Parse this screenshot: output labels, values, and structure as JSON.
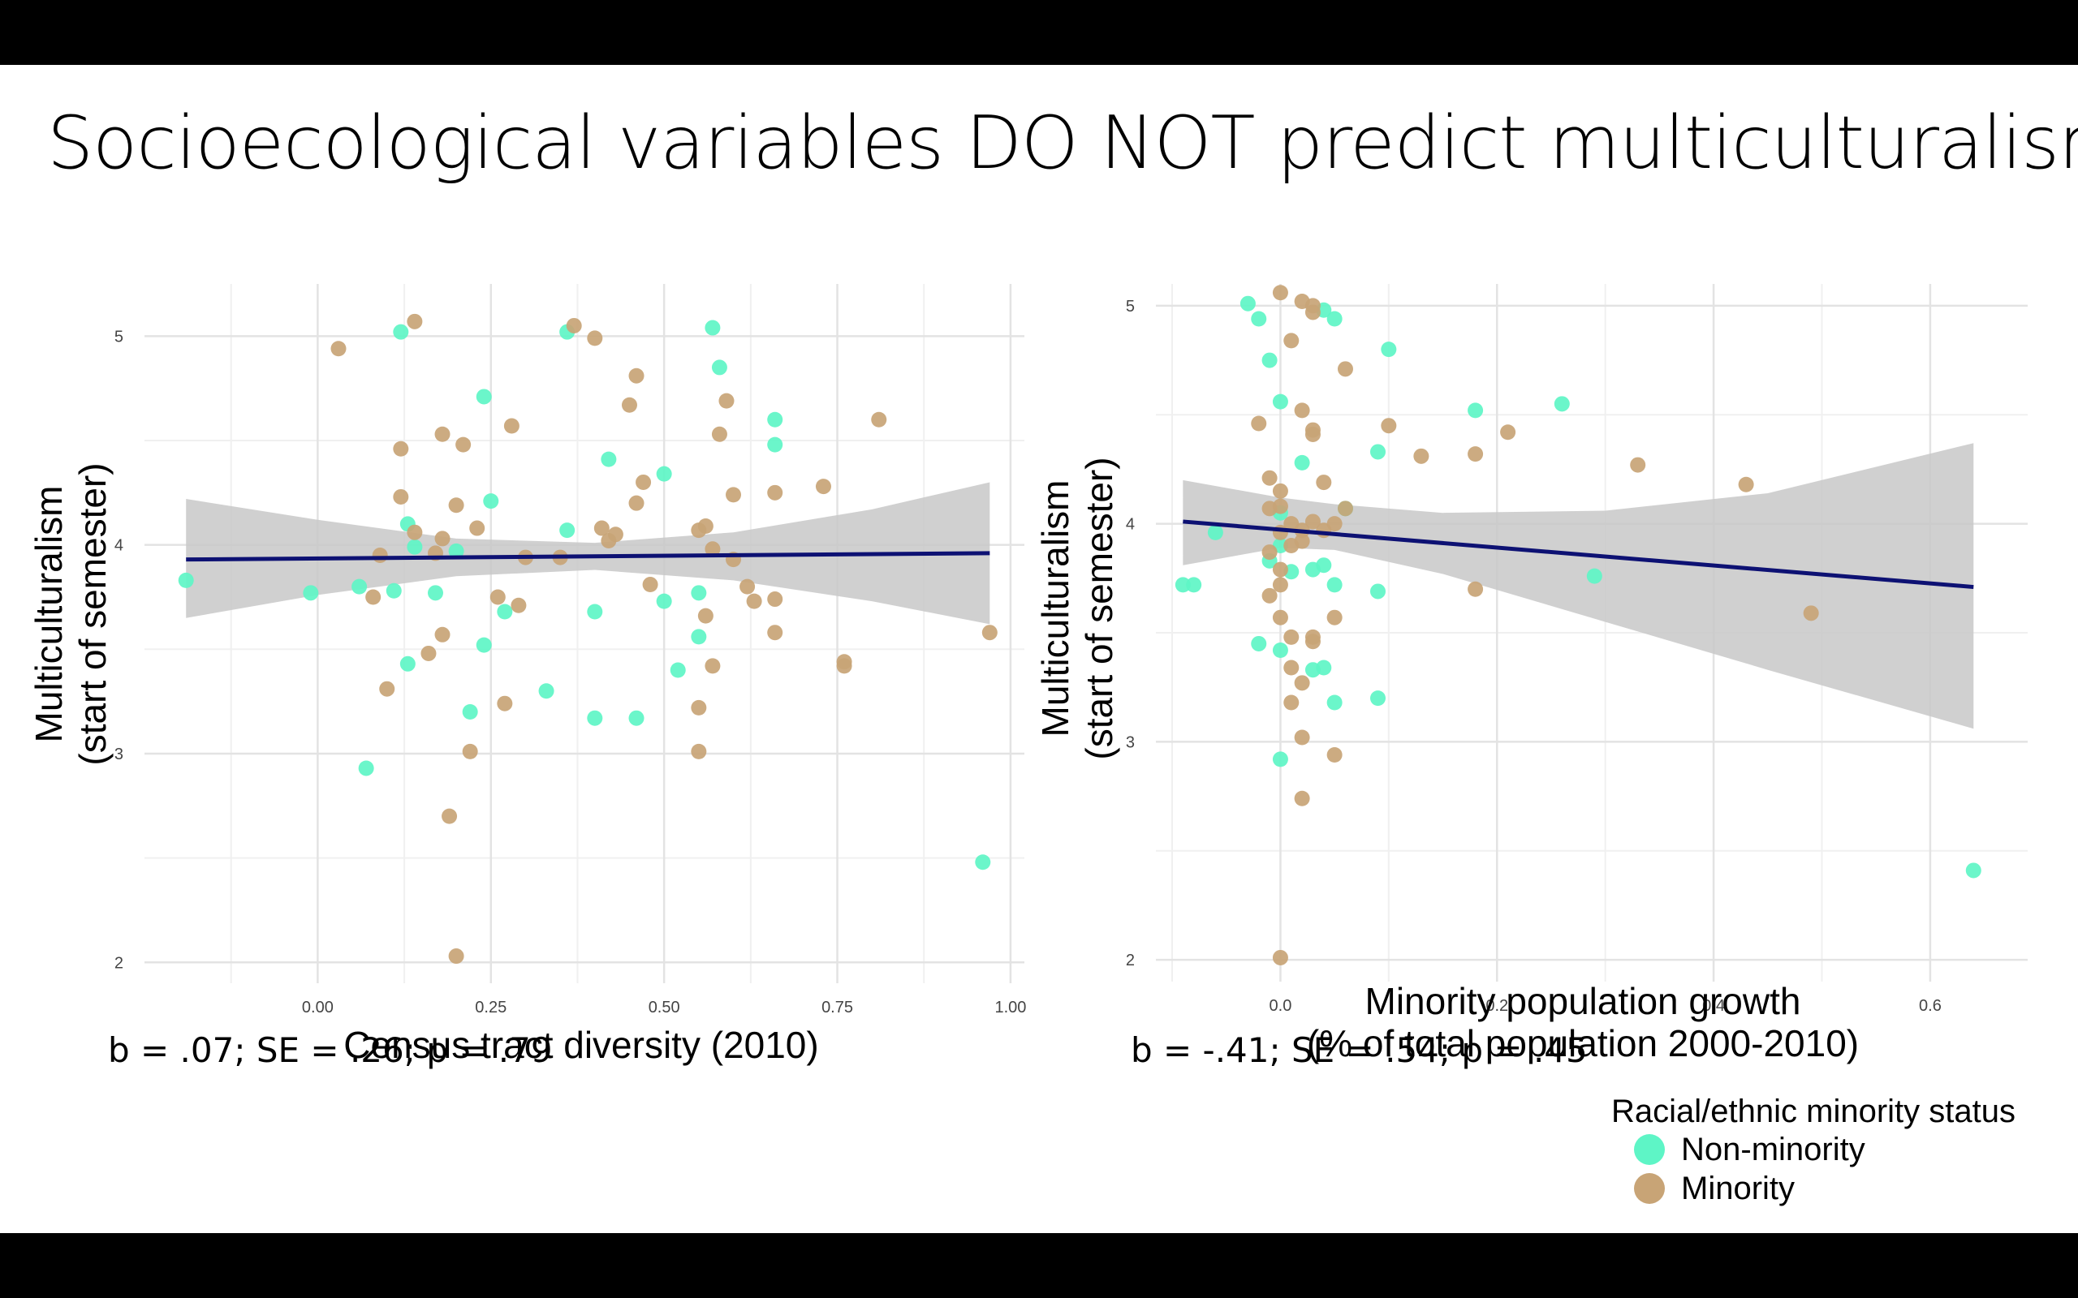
{
  "title": "Socioecological variables DO NOT predict multiculturalism",
  "colors": {
    "non_minority": "#5ef5c6",
    "minority": "#c8a476",
    "fit": "#0d1173",
    "band": "#c8c8c8"
  },
  "stats_left": "b = .07; SE = .26; p = .79",
  "stats_right": "b = -.41; SE = .54; p = .45",
  "legend": {
    "title": "Racial/ethnic minority status",
    "items": [
      "Non-minority",
      "Minority"
    ]
  },
  "chart_data": [
    {
      "type": "scatter",
      "xlabel": "Census tract diversity (2010)",
      "ylabel": [
        "Multiculturalism",
        "(start of semester)"
      ],
      "xlim": [
        -0.25,
        1.02
      ],
      "ylim": [
        1.9,
        5.25
      ],
      "xticks": [
        0.0,
        0.25,
        0.5,
        0.75,
        1.0
      ],
      "xtick_labels": [
        "0.00",
        "0.25",
        "0.50",
        "0.75",
        "1.00"
      ],
      "yticks": [
        2,
        3,
        4,
        5
      ],
      "ytick_labels": [
        "2",
        "3",
        "4",
        "5"
      ],
      "grid": true,
      "fit": {
        "x": [
          -0.19,
          0.97
        ],
        "y": [
          3.93,
          3.96
        ]
      },
      "band": {
        "x": [
          -0.19,
          0.0,
          0.2,
          0.4,
          0.6,
          0.8,
          0.97
        ],
        "lower": [
          3.65,
          3.76,
          3.85,
          3.88,
          3.83,
          3.73,
          3.62
        ],
        "upper": [
          4.22,
          4.12,
          4.03,
          4.01,
          4.06,
          4.17,
          4.3
        ]
      },
      "series": [
        {
          "name": "Non-minority",
          "points": [
            [
              -0.19,
              3.83
            ],
            [
              -0.01,
              3.77
            ],
            [
              0.07,
              2.93
            ],
            [
              0.06,
              3.8
            ],
            [
              0.11,
              3.78
            ],
            [
              0.13,
              3.43
            ],
            [
              0.13,
              4.1
            ],
            [
              0.14,
              3.99
            ],
            [
              0.12,
              5.02
            ],
            [
              0.17,
              3.77
            ],
            [
              0.2,
              3.97
            ],
            [
              0.22,
              3.2
            ],
            [
              0.24,
              4.71
            ],
            [
              0.24,
              3.52
            ],
            [
              0.25,
              4.21
            ],
            [
              0.27,
              3.68
            ],
            [
              0.33,
              3.3
            ],
            [
              0.36,
              4.07
            ],
            [
              0.36,
              5.02
            ],
            [
              0.4,
              3.68
            ],
            [
              0.4,
              3.17
            ],
            [
              0.42,
              4.41
            ],
            [
              0.46,
              3.17
            ],
            [
              0.5,
              4.34
            ],
            [
              0.5,
              3.73
            ],
            [
              0.52,
              3.4
            ],
            [
              0.55,
              3.56
            ],
            [
              0.55,
              3.77
            ],
            [
              0.57,
              5.04
            ],
            [
              0.58,
              4.85
            ],
            [
              0.66,
              4.6
            ],
            [
              0.66,
              4.48
            ],
            [
              0.96,
              2.48
            ]
          ]
        },
        {
          "name": "Minority",
          "points": [
            [
              0.03,
              4.94
            ],
            [
              0.09,
              3.95
            ],
            [
              0.08,
              3.75
            ],
            [
              0.1,
              3.31
            ],
            [
              0.12,
              4.23
            ],
            [
              0.12,
              4.46
            ],
            [
              0.14,
              4.06
            ],
            [
              0.14,
              5.07
            ],
            [
              0.16,
              3.48
            ],
            [
              0.17,
              3.96
            ],
            [
              0.18,
              4.53
            ],
            [
              0.18,
              4.03
            ],
            [
              0.18,
              3.57
            ],
            [
              0.19,
              2.7
            ],
            [
              0.2,
              4.19
            ],
            [
              0.2,
              2.03
            ],
            [
              0.21,
              4.48
            ],
            [
              0.22,
              3.01
            ],
            [
              0.23,
              4.08
            ],
            [
              0.26,
              3.75
            ],
            [
              0.27,
              3.24
            ],
            [
              0.28,
              4.57
            ],
            [
              0.29,
              3.71
            ],
            [
              0.3,
              3.94
            ],
            [
              0.35,
              3.94
            ],
            [
              0.37,
              5.05
            ],
            [
              0.4,
              4.99
            ],
            [
              0.41,
              4.08
            ],
            [
              0.42,
              4.02
            ],
            [
              0.43,
              4.05
            ],
            [
              0.45,
              4.67
            ],
            [
              0.46,
              4.81
            ],
            [
              0.46,
              4.2
            ],
            [
              0.47,
              4.3
            ],
            [
              0.48,
              3.81
            ],
            [
              0.55,
              4.07
            ],
            [
              0.56,
              4.09
            ],
            [
              0.56,
              3.66
            ],
            [
              0.57,
              3.98
            ],
            [
              0.57,
              3.42
            ],
            [
              0.55,
              3.22
            ],
            [
              0.55,
              3.01
            ],
            [
              0.58,
              4.53
            ],
            [
              0.59,
              4.69
            ],
            [
              0.6,
              4.24
            ],
            [
              0.6,
              3.93
            ],
            [
              0.62,
              3.8
            ],
            [
              0.63,
              3.73
            ],
            [
              0.66,
              3.74
            ],
            [
              0.66,
              4.25
            ],
            [
              0.66,
              3.58
            ],
            [
              0.73,
              4.28
            ],
            [
              0.76,
              3.44
            ],
            [
              0.76,
              3.42
            ],
            [
              0.81,
              4.6
            ],
            [
              0.97,
              3.58
            ]
          ]
        }
      ]
    },
    {
      "type": "scatter",
      "xlabel": [
        "Minority population growth",
        "(% of total population 2000-2010)"
      ],
      "ylabel": [
        "Multiculturalism",
        "(start of semester)"
      ],
      "xlim": [
        -0.115,
        0.69
      ],
      "ylim": [
        1.9,
        5.1
      ],
      "xticks": [
        0.0,
        0.2,
        0.4,
        0.6
      ],
      "xtick_labels": [
        "0.0",
        "0.2",
        "0.4",
        "0.6"
      ],
      "yticks": [
        2,
        3,
        4,
        5
      ],
      "ytick_labels": [
        "2",
        "3",
        "4",
        "5"
      ],
      "grid": true,
      "fit": {
        "x": [
          -0.09,
          0.64
        ],
        "y": [
          4.01,
          3.71
        ]
      },
      "band": {
        "x": [
          -0.09,
          0.0,
          0.05,
          0.15,
          0.3,
          0.45,
          0.64
        ],
        "lower": [
          3.81,
          3.89,
          3.88,
          3.77,
          3.55,
          3.33,
          3.06
        ],
        "upper": [
          4.2,
          4.12,
          4.09,
          4.05,
          4.06,
          4.14,
          4.37
        ]
      },
      "series": [
        {
          "name": "Non-minority",
          "points": [
            [
              -0.09,
              3.72
            ],
            [
              -0.08,
              3.72
            ],
            [
              -0.06,
              3.96
            ],
            [
              -0.03,
              5.01
            ],
            [
              -0.02,
              4.94
            ],
            [
              -0.01,
              4.75
            ],
            [
              0.0,
              4.56
            ],
            [
              0.0,
              4.05
            ],
            [
              0.0,
              3.9
            ],
            [
              -0.02,
              3.45
            ],
            [
              -0.01,
              3.83
            ],
            [
              0.0,
              3.42
            ],
            [
              0.0,
              2.92
            ],
            [
              0.01,
              3.78
            ],
            [
              0.02,
              4.28
            ],
            [
              0.03,
              3.79
            ],
            [
              0.03,
              3.33
            ],
            [
              0.04,
              3.34
            ],
            [
              0.04,
              4.98
            ],
            [
              0.05,
              4.94
            ],
            [
              0.05,
              3.72
            ],
            [
              0.05,
              3.18
            ],
            [
              0.06,
              4.07
            ],
            [
              0.04,
              3.81
            ],
            [
              0.09,
              4.33
            ],
            [
              0.09,
              3.69
            ],
            [
              0.09,
              3.2
            ],
            [
              0.1,
              4.8
            ],
            [
              0.18,
              4.52
            ],
            [
              0.26,
              4.55
            ],
            [
              0.29,
              3.76
            ],
            [
              0.64,
              2.41
            ]
          ]
        },
        {
          "name": "Minority",
          "points": [
            [
              -0.02,
              4.46
            ],
            [
              -0.01,
              4.07
            ],
            [
              -0.01,
              3.87
            ],
            [
              -0.01,
              3.67
            ],
            [
              -0.01,
              4.21
            ],
            [
              0.0,
              4.08
            ],
            [
              0.0,
              3.79
            ],
            [
              0.0,
              3.72
            ],
            [
              0.0,
              2.01
            ],
            [
              0.0,
              5.06
            ],
            [
              0.01,
              4.84
            ],
            [
              0.0,
              4.15
            ],
            [
              0.0,
              3.96
            ],
            [
              0.01,
              3.9
            ],
            [
              0.0,
              3.57
            ],
            [
              0.01,
              3.48
            ],
            [
              0.01,
              3.34
            ],
            [
              0.01,
              3.18
            ],
            [
              0.02,
              3.02
            ],
            [
              0.02,
              2.74
            ],
            [
              0.02,
              5.02
            ],
            [
              0.03,
              5.0
            ],
            [
              0.03,
              4.97
            ],
            [
              0.02,
              4.52
            ],
            [
              0.03,
              4.43
            ],
            [
              0.03,
              4.41
            ],
            [
              0.02,
              3.97
            ],
            [
              0.03,
              4.01
            ],
            [
              0.02,
              3.27
            ],
            [
              0.03,
              3.48
            ],
            [
              0.03,
              3.46
            ],
            [
              0.04,
              4.19
            ],
            [
              0.04,
              3.97
            ],
            [
              0.05,
              4.0
            ],
            [
              0.05,
              3.57
            ],
            [
              0.05,
              2.94
            ],
            [
              0.06,
              4.71
            ],
            [
              0.06,
              4.07
            ],
            [
              0.1,
              4.45
            ],
            [
              0.13,
              4.31
            ],
            [
              0.18,
              4.32
            ],
            [
              0.18,
              3.7
            ],
            [
              0.21,
              4.42
            ],
            [
              0.33,
              4.27
            ],
            [
              0.43,
              4.18
            ],
            [
              0.49,
              3.59
            ],
            [
              0.02,
              3.92
            ],
            [
              0.01,
              4.0
            ]
          ]
        }
      ]
    }
  ]
}
